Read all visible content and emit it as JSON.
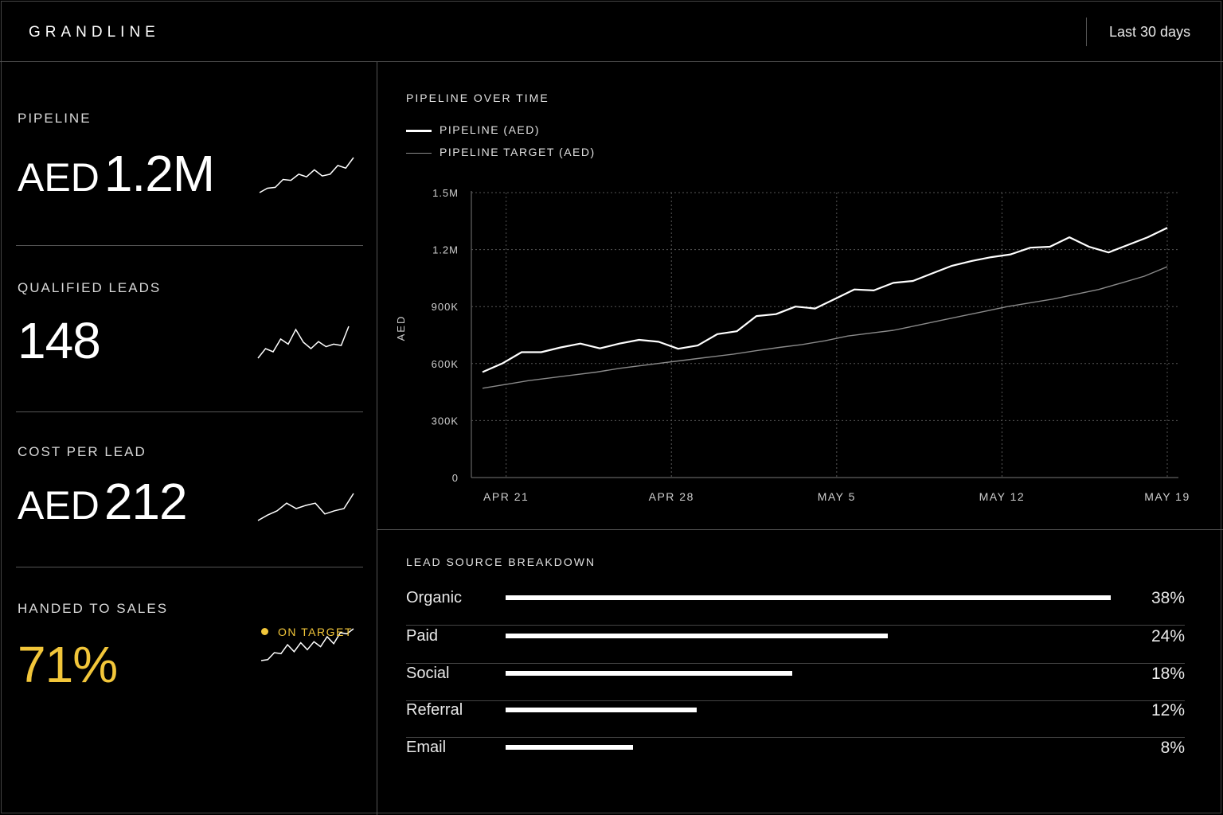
{
  "header": {
    "brand": "GRANDLINE",
    "date_range": "Last 30 days"
  },
  "kpis": [
    {
      "label": "PIPELINE",
      "unit": "AED",
      "value": "1.2M",
      "spark": [
        2,
        3,
        3.2,
        5,
        4.8,
        6.2,
        5.6,
        7.2,
        5.8,
        6.2,
        8.2,
        7.6,
        10
      ]
    },
    {
      "label": "QUALIFIED LEADS",
      "unit": "",
      "value": "148",
      "spark": [
        3,
        4.5,
        4,
        6,
        5.2,
        7.5,
        5.5,
        4.5,
        5.6,
        4.8,
        5.2,
        5.0,
        8
      ]
    },
    {
      "label": "COST PER LEAD",
      "unit": "AED",
      "value": "212",
      "spark": [
        2,
        3,
        3.8,
        5.2,
        4.2,
        4.8,
        5.2,
        3.2,
        3.8,
        4.2,
        7
      ]
    },
    {
      "label": "HANDED TO SALES",
      "unit": "",
      "value": "71%",
      "spark": [
        2,
        2.2,
        3.6,
        3.4,
        5.2,
        3.8,
        5.6,
        4.2,
        5.8,
        4.8,
        6.8,
        5.4,
        7.6,
        7.4,
        8.4
      ]
    }
  ],
  "status_badge": "ON TARGET",
  "chart_data": {
    "type": "line",
    "title": "PIPELINE OVER TIME",
    "ylabel": "AED",
    "xlabel": "",
    "x_ticks": [
      "APR 21",
      "APR 28",
      "MAY 5",
      "MAY 12",
      "MAY 19"
    ],
    "y_ticks": [
      "0",
      "300K",
      "600K",
      "900K",
      "1.2M",
      "1.5M"
    ],
    "ylim": [
      0,
      1500000
    ],
    "x_range": [
      "APR 20",
      "MAY 19"
    ],
    "grid": true,
    "legend_position": "top-left",
    "series": [
      {
        "name": "PIPELINE (AED)",
        "color": "#ffffff",
        "points": [
          [
            "APR 20",
            555000
          ],
          [
            "APR 21",
            600000
          ],
          [
            "APR 22",
            660000
          ],
          [
            "APR 23",
            660000
          ],
          [
            "APR 24",
            685000
          ],
          [
            "APR 25",
            705000
          ],
          [
            "APR 26",
            680000
          ],
          [
            "APR 27",
            705000
          ],
          [
            "APR 28",
            725000
          ],
          [
            "APR 29",
            715000
          ],
          [
            "APR 30",
            678000
          ],
          [
            "MAY 1",
            695000
          ],
          [
            "MAY 2",
            755000
          ],
          [
            "MAY 3",
            770000
          ],
          [
            "MAY 4",
            850000
          ],
          [
            "MAY 5",
            860000
          ],
          [
            "MAY 6",
            900000
          ],
          [
            "MAY 7",
            890000
          ],
          [
            "MAY 8",
            940000
          ],
          [
            "MAY 9",
            990000
          ],
          [
            "MAY 10",
            985000
          ],
          [
            "MAY 11",
            1025000
          ],
          [
            "MAY 12",
            1035000
          ],
          [
            "MAY 13",
            1075000
          ],
          [
            "MAY 14",
            1115000
          ],
          [
            "MAY 15",
            1140000
          ],
          [
            "MAY 16",
            1160000
          ],
          [
            "MAY 17",
            1175000
          ],
          [
            "MAY 17",
            1210000
          ],
          [
            "MAY 18",
            1215000
          ],
          [
            "MAY 18",
            1265000
          ],
          [
            "MAY 19",
            1215000
          ],
          [
            "MAY 19",
            1185000
          ],
          [
            "MAY 19",
            1225000
          ],
          [
            "MAY 19",
            1265000
          ],
          [
            "MAY 19",
            1315000
          ]
        ]
      },
      {
        "name": "PIPELINE TARGET (AED)",
        "color": "#8a8a8a",
        "points": [
          [
            "APR 20",
            470000
          ],
          [
            "APR 21",
            490000
          ],
          [
            "APR 22",
            510000
          ],
          [
            "APR 23",
            525000
          ],
          [
            "APR 24",
            540000
          ],
          [
            "APR 25",
            555000
          ],
          [
            "APR 26",
            575000
          ],
          [
            "APR 27",
            590000
          ],
          [
            "APR 28",
            605000
          ],
          [
            "APR 29",
            620000
          ],
          [
            "APR 30",
            635000
          ],
          [
            "MAY 1",
            650000
          ],
          [
            "MAY 2",
            668000
          ],
          [
            "MAY 3",
            685000
          ],
          [
            "MAY 4",
            700000
          ],
          [
            "MAY 5",
            720000
          ],
          [
            "MAY 6",
            745000
          ],
          [
            "MAY 7",
            760000
          ],
          [
            "MAY 8",
            775000
          ],
          [
            "MAY 9",
            800000
          ],
          [
            "MAY 10",
            825000
          ],
          [
            "MAY 11",
            850000
          ],
          [
            "MAY 12",
            875000
          ],
          [
            "MAY 13",
            900000
          ],
          [
            "MAY 14",
            920000
          ],
          [
            "MAY 15",
            940000
          ],
          [
            "MAY 16",
            965000
          ],
          [
            "MAY 17",
            990000
          ],
          [
            "MAY 18",
            1025000
          ],
          [
            "MAY 19",
            1060000
          ],
          [
            "MAY 19",
            1110000
          ]
        ]
      }
    ]
  },
  "lead_sources": {
    "title": "LEAD SOURCE BREAKDOWN",
    "items": [
      {
        "name": "Organic",
        "label": "38%",
        "value": 38
      },
      {
        "name": "Paid",
        "label": "24%",
        "value": 24
      },
      {
        "name": "Social",
        "label": "18%",
        "value": 18
      },
      {
        "name": "Referral",
        "label": "12%",
        "value": 12
      },
      {
        "name": "Email",
        "label": "8%",
        "value": 8
      }
    ]
  }
}
